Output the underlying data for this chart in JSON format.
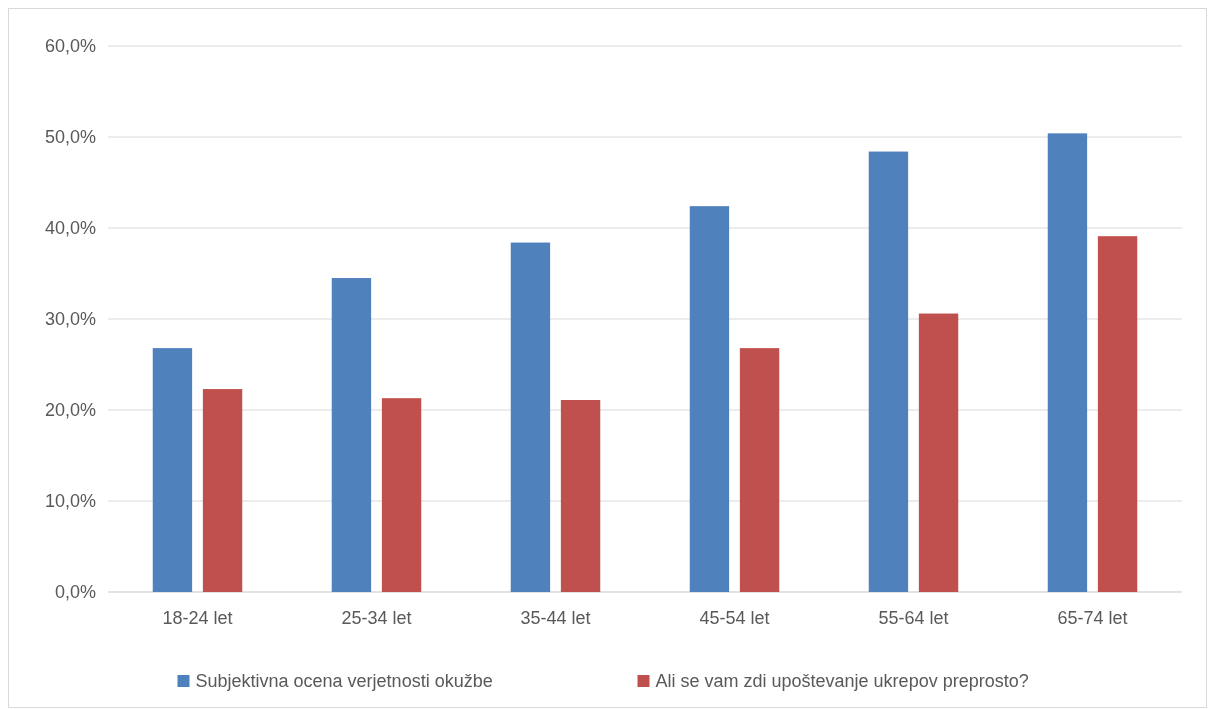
{
  "chart_data": {
    "type": "bar",
    "categories": [
      "18-24 let",
      "25-34 let",
      "35-44 let",
      "45-54 let",
      "55-64 let",
      "65-74 let"
    ],
    "series": [
      {
        "name": "Subjektivna ocena verjetnosti okužbe",
        "color": "#4f81bd",
        "values": [
          26.8,
          34.5,
          38.4,
          42.4,
          48.4,
          50.4
        ]
      },
      {
        "name": "Ali se vam zdi upoštevanje ukrepov preprosto?",
        "color": "#c0504d",
        "values": [
          22.3,
          21.3,
          21.1,
          26.8,
          30.6,
          39.1
        ]
      }
    ],
    "ylim": [
      0,
      60
    ],
    "yticks": [
      {
        "value": 0,
        "label": "0,0%"
      },
      {
        "value": 10,
        "label": "10,0%"
      },
      {
        "value": 20,
        "label": "20,0%"
      },
      {
        "value": 30,
        "label": "30,0%"
      },
      {
        "value": 40,
        "label": "40,0%"
      },
      {
        "value": 50,
        "label": "50,0%"
      },
      {
        "value": 60,
        "label": "60,0%"
      }
    ],
    "grid": "y",
    "legend": "bottom"
  }
}
